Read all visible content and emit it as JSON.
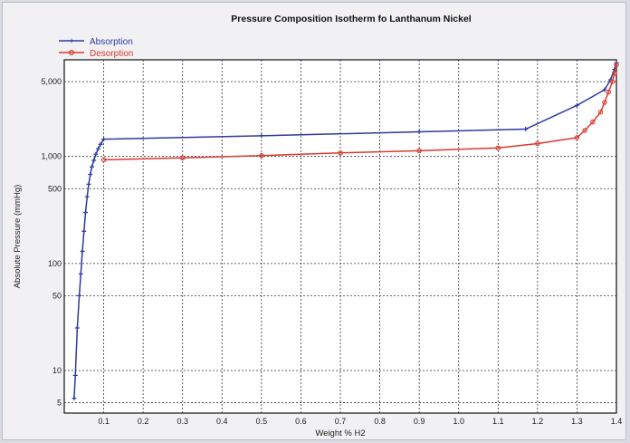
{
  "colors": {
    "absorption": "#2d3a9e",
    "desorption": "#d83a30",
    "grid": "#333333",
    "plot_bg": "#ffffff",
    "frame_bg": "#f1f1f3"
  },
  "chart_data": {
    "type": "line",
    "title": "Pressure Composition Isotherm fo Lanthanum Nickel",
    "xlabel": "Weight % H2",
    "ylabel": "Absolute Pressure (mmHg)",
    "x_scale": "linear",
    "y_scale": "log",
    "xlim": [
      0.0,
      1.4
    ],
    "ylim": [
      4,
      8000
    ],
    "grid": true,
    "legend_position": "top-left",
    "x_ticks": [
      0.1,
      0.2,
      0.3,
      0.4,
      0.5,
      0.6,
      0.7,
      0.8,
      0.9,
      1.0,
      1.1,
      1.2,
      1.3,
      1.4
    ],
    "x_tick_labels": [
      "0.1",
      "0.2",
      "0.3",
      "0.4",
      "0.5",
      "0.6",
      "0.7",
      "0.8",
      "0.9",
      "1.0",
      "1.1",
      "1.2",
      "1.3",
      "1.4"
    ],
    "y_ticks": [
      5,
      10,
      50,
      100,
      500,
      1000,
      5000
    ],
    "y_tick_labels": [
      "5",
      "10",
      "50",
      "100",
      "500",
      "1,000",
      "5,000"
    ],
    "series": [
      {
        "name": "Absorption",
        "color": "#2d3a9e",
        "points": [
          [
            0.025,
            5.5
          ],
          [
            0.028,
            9
          ],
          [
            0.033,
            25
          ],
          [
            0.038,
            50
          ],
          [
            0.042,
            80
          ],
          [
            0.046,
            130
          ],
          [
            0.05,
            200
          ],
          [
            0.054,
            300
          ],
          [
            0.058,
            420
          ],
          [
            0.062,
            550
          ],
          [
            0.066,
            680
          ],
          [
            0.07,
            800
          ],
          [
            0.075,
            920
          ],
          [
            0.08,
            1050
          ],
          [
            0.086,
            1180
          ],
          [
            0.092,
            1300
          ],
          [
            0.1,
            1450
          ],
          [
            0.5,
            1560
          ],
          [
            0.9,
            1700
          ],
          [
            1.17,
            1800
          ],
          [
            1.3,
            3000
          ],
          [
            1.37,
            4200
          ],
          [
            1.385,
            5200
          ],
          [
            1.395,
            6500
          ],
          [
            1.4,
            7500
          ]
        ]
      },
      {
        "name": "Desorption",
        "color": "#d83a30",
        "points": [
          [
            1.4,
            7200
          ],
          [
            1.395,
            6000
          ],
          [
            1.39,
            5000
          ],
          [
            1.38,
            4000
          ],
          [
            1.37,
            3200
          ],
          [
            1.36,
            2600
          ],
          [
            1.34,
            2100
          ],
          [
            1.32,
            1750
          ],
          [
            1.3,
            1500
          ],
          [
            1.2,
            1320
          ],
          [
            1.1,
            1200
          ],
          [
            0.9,
            1130
          ],
          [
            0.7,
            1080
          ],
          [
            0.5,
            1020
          ],
          [
            0.3,
            970
          ],
          [
            0.1,
            930
          ]
        ]
      }
    ]
  }
}
